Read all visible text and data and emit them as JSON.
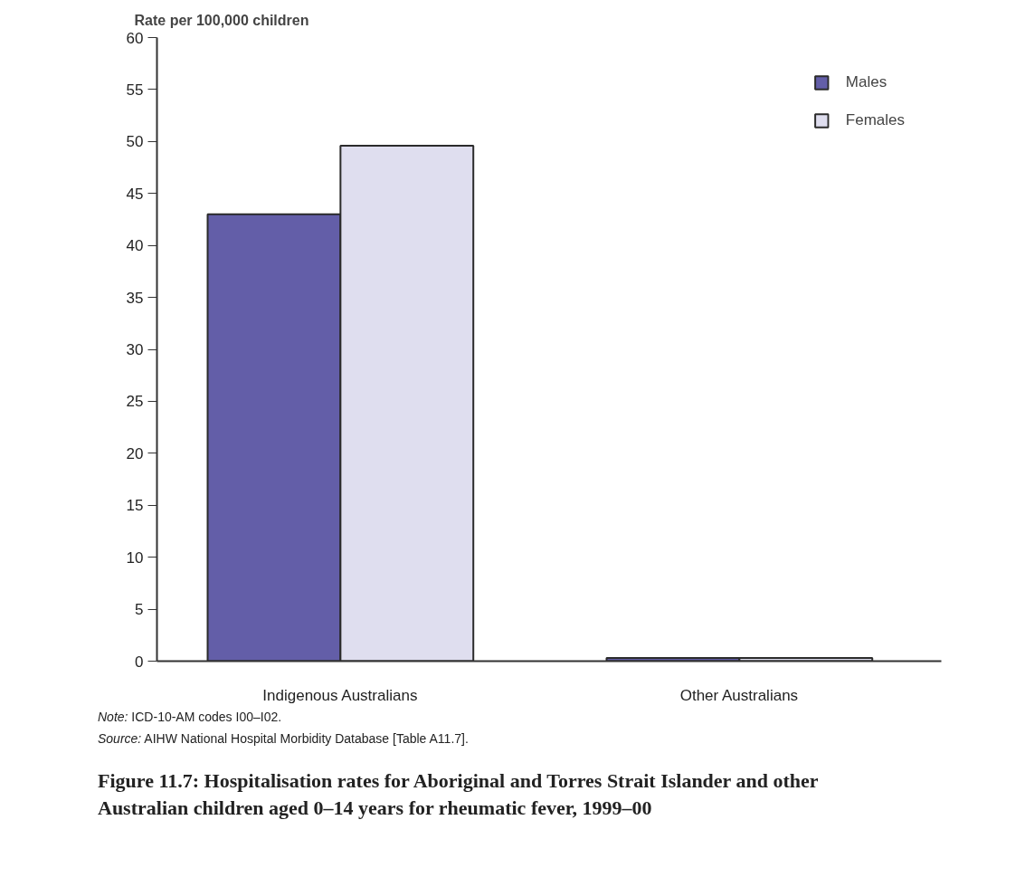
{
  "chart_data": {
    "type": "bar",
    "ylabel": "Rate per 100,000 children",
    "title": "Figure 11.7: Hospitalisation rates for Aboriginal and Torres Strait Islander and other Australian children aged 0–14 years for rheumatic fever, 1999–00",
    "categories": [
      "Indigenous Australians",
      "Other Australians"
    ],
    "series": [
      {
        "name": "Males",
        "color": "#635ea8",
        "values": [
          43,
          0.3
        ]
      },
      {
        "name": "Females",
        "color": "#dfdeef",
        "values": [
          49.6,
          0.3
        ]
      }
    ],
    "ylim": [
      0,
      60
    ],
    "yticks": [
      0,
      5,
      10,
      15,
      20,
      25,
      30,
      35,
      40,
      45,
      50,
      55,
      60
    ],
    "grid": false,
    "legend": "top right",
    "annotations": [
      "Note: ICD-10-AM codes I00–I02.",
      "Source: AIHW National Hospital Morbidity Database [Table A11.7]."
    ]
  }
}
